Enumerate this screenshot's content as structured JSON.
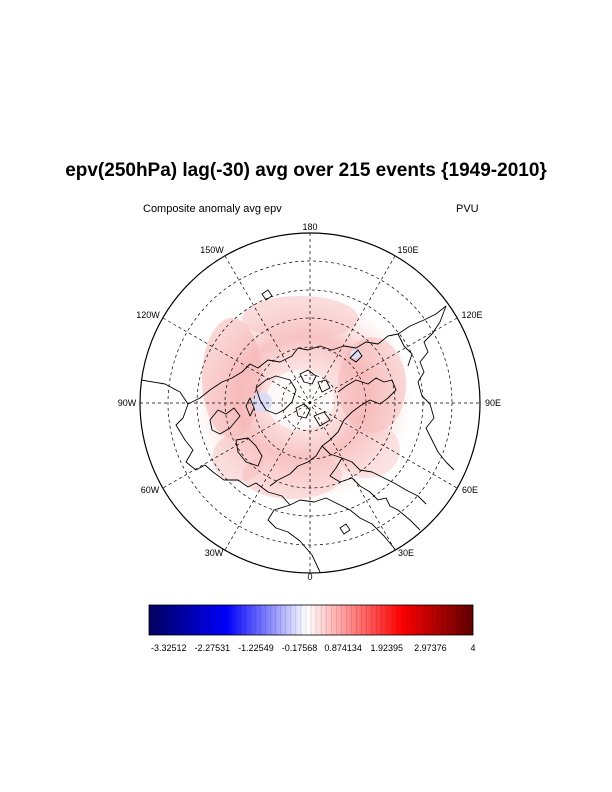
{
  "title": "epv(250hPa) lag(-30) avg over 215 events {1949-2010}",
  "subtitle_left": "Composite anomaly avg epv",
  "subtitle_right": "PVU",
  "longitude_labels": {
    "top": "180",
    "top_left": "150W",
    "top_right": "150E",
    "upper_left": "120W",
    "upper_right": "120E",
    "left": "90W",
    "right": "90E",
    "lower_left": "60W",
    "lower_right": "60E",
    "bottom_left": "30W",
    "bottom_right": "30E",
    "bottom": "0"
  },
  "colorbar": {
    "labels": [
      "-3.32512",
      "-2.27531",
      "-1.22549",
      "-0.17568",
      "0.874134",
      "1.92395",
      "2.97376",
      "4"
    ],
    "min": -3.8,
    "max": 4,
    "colors": {
      "low": "#000060",
      "mid_low": "#0000ff",
      "center": "#ffffff",
      "mid_high": "#ff0000",
      "high": "#600000"
    }
  },
  "map_colors": {
    "anomaly_fill": "#f9c8c8",
    "anomaly_core": "#f4abab",
    "negative_fill": "#d8dcf6",
    "coastline": "#000000",
    "grid": "#000000"
  }
}
